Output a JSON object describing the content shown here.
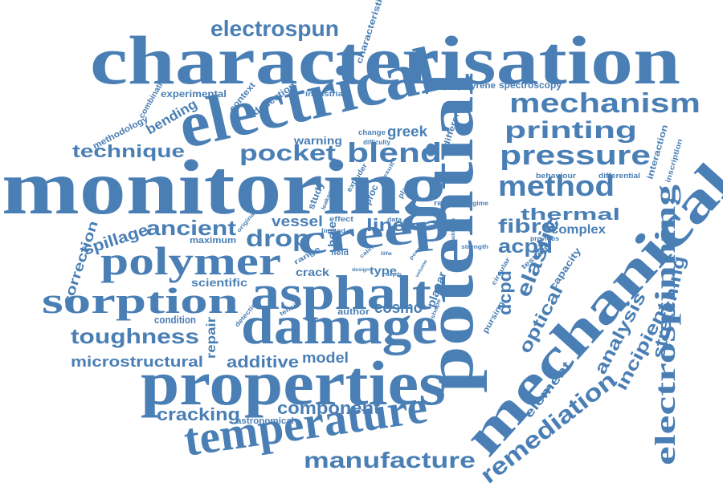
{
  "color": "#4a7fb5",
  "words": [
    "characterisation",
    "monitoring",
    "electrical",
    "potential",
    "mechanical",
    "properties",
    "damage",
    "asphalt",
    "temperature",
    "creep",
    "polymer",
    "sorption",
    "electrospinning",
    "electrospun",
    "mechanism",
    "printing",
    "pressure",
    "method",
    "blend",
    "pocket",
    "technique",
    "manufacture",
    "remediation",
    "toughness",
    "cracking",
    "component",
    "additive",
    "model",
    "microstructural",
    "ancient",
    "drop",
    "spillage",
    "thermal",
    "fibre",
    "acpd",
    "dcpd",
    "elastic",
    "optical",
    "analysis",
    "incipient",
    "stretching",
    "complex",
    "cosmo",
    "vessel",
    "line",
    "scientific",
    "condition",
    "correction",
    "repair",
    "bending",
    "experimental",
    "deflection",
    "context",
    "combination",
    "methodology",
    "characteristic",
    "industrial",
    "polystyrene",
    "spectroscopy",
    "warning",
    "greek",
    "change",
    "difficulty",
    "different",
    "behaviour",
    "differential",
    "interaction",
    "inscription",
    "capacity",
    "previous",
    "testing",
    "element",
    "planar",
    "type",
    "crack",
    "range",
    "field",
    "author",
    "tensile",
    "detection",
    "astronomical",
    "maximum",
    "original",
    "hole",
    "effect",
    "limited",
    "study",
    "leakage",
    "extruder",
    "proc",
    "result",
    "plant",
    "data",
    "square",
    "report",
    "regime",
    "addition",
    "strength",
    "design",
    "depth",
    "pore",
    "life",
    "calin",
    "shape",
    "volume",
    "circular",
    "pursing"
  ]
}
